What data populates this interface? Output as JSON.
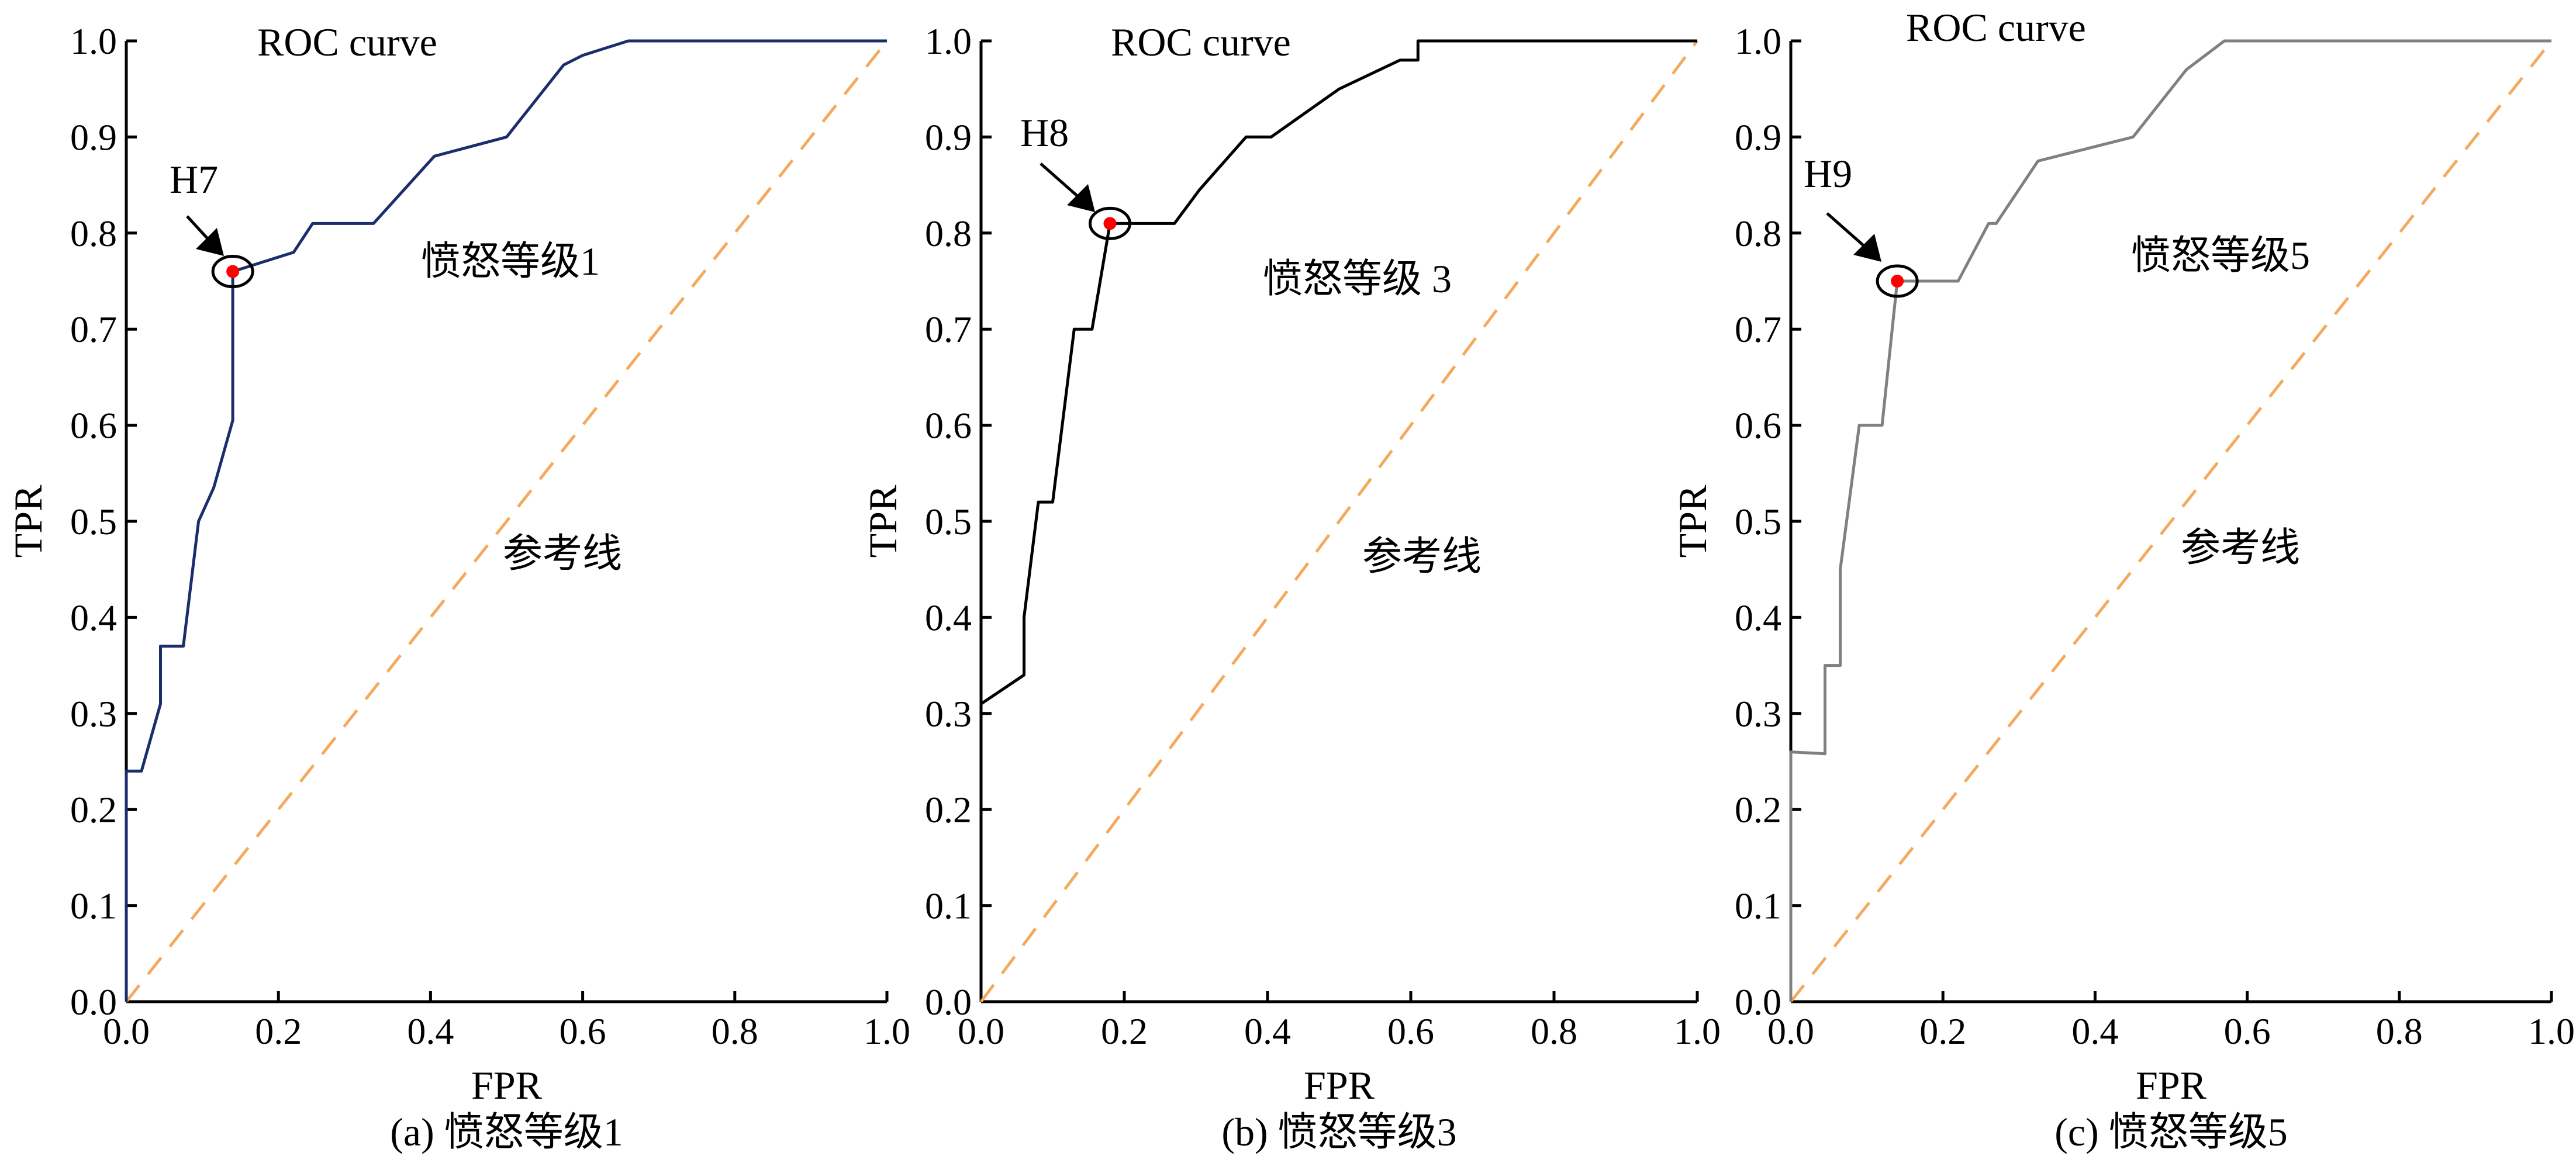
{
  "chart_data": [
    {
      "type": "line",
      "title": "ROC curve",
      "xlabel": "FPR",
      "ylabel": "TPR",
      "caption": "(a) 愤怒等级1",
      "curve_label": "愤怒等级1",
      "reference_label": "参考线",
      "xlim": [
        0,
        1
      ],
      "ylim": [
        0,
        1
      ],
      "xticks": [
        "0.0",
        "0.2",
        "0.4",
        "0.6",
        "0.8",
        "1.0"
      ],
      "yticks": [
        "0.0",
        "0.1",
        "0.2",
        "0.3",
        "0.4",
        "0.5",
        "0.6",
        "0.7",
        "0.8",
        "0.9",
        "1.0"
      ],
      "grid": false,
      "curve_color": "#1b2d6b",
      "reference_color": "#f5a95c",
      "marker_color": "#ff0000",
      "optimal_point": {
        "label": "H7",
        "x": 0.14,
        "y": 0.76
      },
      "series": [
        {
          "x": [
            0,
            0,
            0.02,
            0.045,
            0.045,
            0.075,
            0.095,
            0.115,
            0.14,
            0.14,
            0.18,
            0.22,
            0.245,
            0.325,
            0.405,
            0.5,
            0.575,
            0.6,
            0.66,
            1.0
          ],
          "y": [
            0,
            0.24,
            0.24,
            0.31,
            0.37,
            0.37,
            0.5,
            0.535,
            0.605,
            0.76,
            0.77,
            0.78,
            0.81,
            0.81,
            0.88,
            0.9,
            0.975,
            0.985,
            1.0,
            1.0
          ]
        }
      ]
    },
    {
      "type": "line",
      "title": "ROC curve",
      "xlabel": "FPR",
      "ylabel": "TPR",
      "caption": "(b) 愤怒等级3",
      "curve_label": "愤怒等级 3",
      "reference_label": "参考线",
      "xlim": [
        0,
        1
      ],
      "ylim": [
        0,
        1
      ],
      "xticks": [
        "0.0",
        "0.2",
        "0.4",
        "0.6",
        "0.8",
        "1.0"
      ],
      "yticks": [
        "0.0",
        "0.1",
        "0.2",
        "0.3",
        "0.4",
        "0.5",
        "0.6",
        "0.7",
        "0.8",
        "0.9",
        "1.0"
      ],
      "grid": false,
      "curve_color": "#000000",
      "reference_color": "#f5a95c",
      "marker_color": "#ff0000",
      "optimal_point": {
        "label": "H8",
        "x": 0.18,
        "y": 0.81
      },
      "series": [
        {
          "x": [
            0,
            0.06,
            0.06,
            0.08,
            0.1,
            0.13,
            0.155,
            0.18,
            0.27,
            0.305,
            0.37,
            0.405,
            0.5,
            0.585,
            0.61,
            0.61,
            1.0
          ],
          "y": [
            0.31,
            0.34,
            0.4,
            0.52,
            0.52,
            0.7,
            0.7,
            0.81,
            0.81,
            0.845,
            0.9,
            0.9,
            0.95,
            0.98,
            0.98,
            1.0,
            1.0
          ]
        }
      ]
    },
    {
      "type": "line",
      "title": "ROC curve",
      "xlabel": "FPR",
      "ylabel": "TPR",
      "caption": "(c) 愤怒等级5",
      "curve_label": "愤怒等级5",
      "reference_label": "参考线",
      "xlim": [
        0,
        1
      ],
      "ylim": [
        0,
        1
      ],
      "xticks": [
        "0.0",
        "0.2",
        "0.4",
        "0.6",
        "0.8",
        "1.0"
      ],
      "yticks": [
        "0.0",
        "0.1",
        "0.2",
        "0.3",
        "0.4",
        "0.5",
        "0.6",
        "0.7",
        "0.8",
        "0.9",
        "1.0"
      ],
      "grid": false,
      "curve_color": "#808080",
      "reference_color": "#f5a95c",
      "marker_color": "#ff0000",
      "optimal_point": {
        "label": "H9",
        "x": 0.14,
        "y": 0.75
      },
      "series": [
        {
          "x": [
            0,
            0,
            0.045,
            0.045,
            0.065,
            0.065,
            0.09,
            0.12,
            0.14,
            0.22,
            0.26,
            0.27,
            0.325,
            0.45,
            0.52,
            0.57,
            1.0
          ],
          "y": [
            0,
            0.26,
            0.258,
            0.35,
            0.35,
            0.45,
            0.6,
            0.6,
            0.75,
            0.75,
            0.81,
            0.81,
            0.875,
            0.9,
            0.97,
            1.0,
            1.0
          ]
        }
      ]
    }
  ]
}
